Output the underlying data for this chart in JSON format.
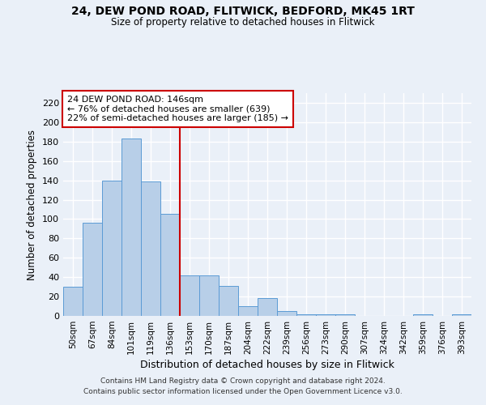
{
  "title_line1": "24, DEW POND ROAD, FLITWICK, BEDFORD, MK45 1RT",
  "title_line2": "Size of property relative to detached houses in Flitwick",
  "xlabel": "Distribution of detached houses by size in Flitwick",
  "ylabel": "Number of detached properties",
  "categories": [
    "50sqm",
    "67sqm",
    "84sqm",
    "101sqm",
    "119sqm",
    "136sqm",
    "153sqm",
    "170sqm",
    "187sqm",
    "204sqm",
    "222sqm",
    "239sqm",
    "256sqm",
    "273sqm",
    "290sqm",
    "307sqm",
    "324sqm",
    "342sqm",
    "359sqm",
    "376sqm",
    "393sqm"
  ],
  "values": [
    30,
    96,
    140,
    183,
    139,
    105,
    42,
    42,
    31,
    10,
    18,
    5,
    2,
    2,
    2,
    0,
    0,
    0,
    2,
    0,
    2
  ],
  "bar_color": "#b8cfe8",
  "bar_edge_color": "#5b9bd5",
  "bg_color": "#eaf0f8",
  "grid_color": "#ffffff",
  "vline_x": 6,
  "vline_color": "#cc0000",
  "annotation_line1": "24 DEW POND ROAD: 146sqm",
  "annotation_line2": "← 76% of detached houses are smaller (639)",
  "annotation_line3": "22% of semi-detached houses are larger (185) →",
  "annotation_box_facecolor": "#ffffff",
  "annotation_box_edgecolor": "#cc0000",
  "ylim": [
    0,
    230
  ],
  "yticks": [
    0,
    20,
    40,
    60,
    80,
    100,
    120,
    140,
    160,
    180,
    200,
    220
  ],
  "footnote_line1": "Contains HM Land Registry data © Crown copyright and database right 2024.",
  "footnote_line2": "Contains public sector information licensed under the Open Government Licence v3.0."
}
